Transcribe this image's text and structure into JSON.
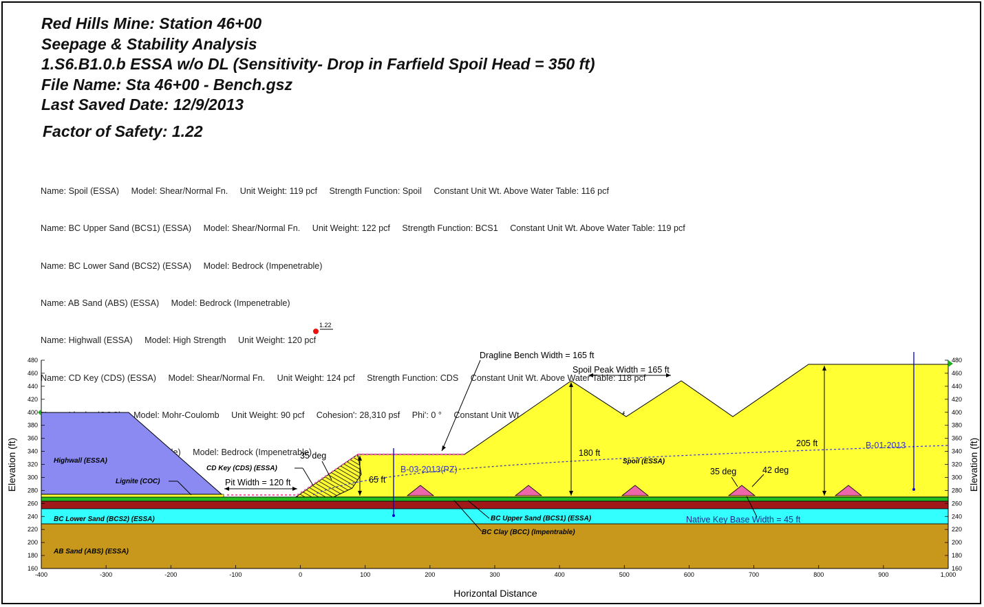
{
  "header": {
    "lines": [
      "Red Hills Mine: Station 46+00",
      "Seepage & Stability Analysis",
      "1.S6.B1.0.b ESSA w/o DL (Sensitivity- Drop in Farfield Spoil Head = 350 ft)",
      "File Name: Sta 46+00 - Bench.gsz",
      "Last Saved Date: 12/9/2013"
    ],
    "factor_of_safety": "Factor of Safety: 1.22"
  },
  "materials": [
    "Name: Spoil (ESSA)     Model: Shear/Normal Fn.     Unit Weight: 119 pcf     Strength Function: Spoil     Constant Unit Wt. Above Water Table: 116 pcf",
    "Name: BC Upper Sand (BCS1) (ESSA)     Model: Shear/Normal Fn.     Unit Weight: 122 pcf     Strength Function: BCS1     Constant Unit Wt. Above Water Table: 119 pcf",
    "Name: BC Lower Sand (BCS2) (ESSA)     Model: Bedrock (Impenetrable)",
    "Name: AB Sand (ABS) (ESSA)     Model: Bedrock (Impenetrable)",
    "Name: Highwall (ESSA)     Model: High Strength     Unit Weight: 120 pcf",
    "Name: CD Key (CDS) (ESSA)     Model: Shear/Normal Fn.     Unit Weight: 124 pcf     Strength Function: CDS     Constant Unit Wt. Above Water Table: 118 pcf",
    "Name: Lignite (COC)     Model: Mohr-Coulomb     Unit Weight: 90 pcf     Cohesion': 28,310 psf     Phi': 0 °     Constant Unit Wt. Above Water Table: 81 pcf",
    "Name: BC Clay (BCC) (Impentrable)     Model: Bedrock (Impenetrable)"
  ],
  "axes": {
    "x_label": "Horizontal Distance",
    "y_label": "Elevation (ft)",
    "x_ticks": [
      "-400",
      "-300",
      "-200",
      "-100",
      "0",
      "100",
      "200",
      "300",
      "400",
      "500",
      "600",
      "700",
      "800",
      "900",
      "1,000"
    ],
    "y_ticks": [
      "160",
      "180",
      "200",
      "220",
      "240",
      "260",
      "280",
      "300",
      "320",
      "340",
      "360",
      "380",
      "400",
      "420",
      "440",
      "460",
      "480"
    ]
  },
  "labels": {
    "highwall": "Highwall (ESSA)",
    "lignite": "Lignite (COC)",
    "cd_key": "CD Key (CDS) (ESSA)",
    "bcs2": "BC Lower Sand (BCS2) (ESSA)",
    "abs": "AB Sand (ABS) (ESSA)",
    "bcs1": "BC Upper Sand (BCS1) (ESSA)",
    "bcc": "BC Clay (BCC) (Impentrable)",
    "spoil": "Spoil (ESSA)",
    "fos_marker": "1.22",
    "pit_width": "Pit Width = 120 ft",
    "angle_35_left": "35 deg",
    "h_65": "65 ft",
    "dragline": "Dragline Bench Width = 165 ft",
    "spoil_peak": "Spoil Peak Width = 165 ft",
    "h_180": "180 ft",
    "h_205": "205 ft",
    "angle_35_right": "35 deg",
    "angle_42": "42 deg",
    "native_key": "Native Key Base Width = 45 ft",
    "b03": "B-03-2013(PZ)",
    "b01": "B-01-2013"
  },
  "colors": {
    "highwall": "#8a8af2",
    "spoil": "#ffff33",
    "bcs1": "#22bb22",
    "bcc": "#a01818",
    "bcs2": "#33ffff",
    "abs": "#c8981c",
    "key": "#ee66aa",
    "piezometric": "#3333cc",
    "cd_key_hatch": "#000000"
  }
}
